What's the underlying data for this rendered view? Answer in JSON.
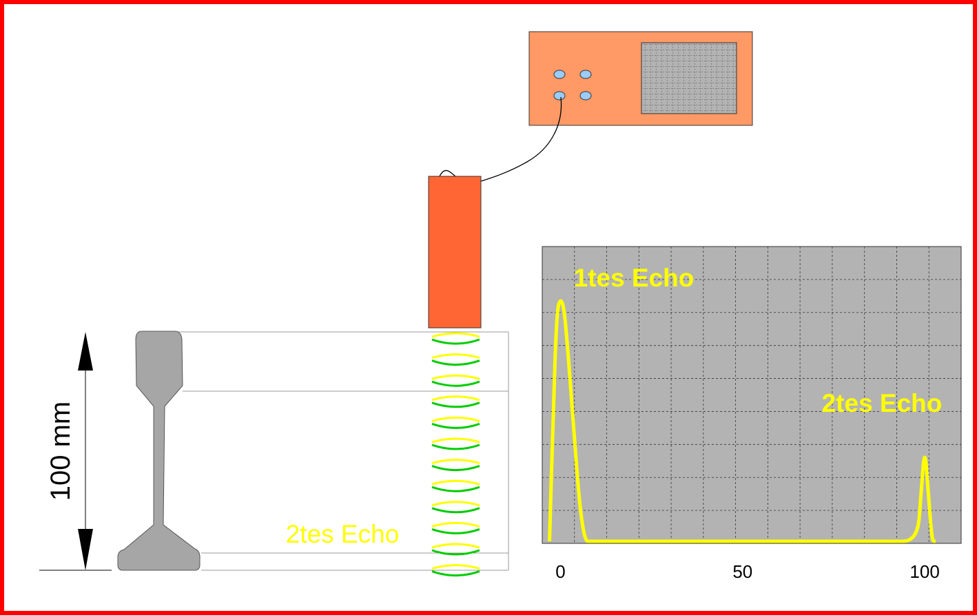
{
  "colors": {
    "frame": "#ff0000",
    "device_body": "#ff9966",
    "device_screen": "#b3b3b3",
    "knob": "#99ccff",
    "probe": "#ff6633",
    "rail": "#a6a6a6",
    "wave_green": "#00cc00",
    "wave_yellow": "#ffff00",
    "trace": "#ffff00",
    "screen_bg": "#b3b3b3"
  },
  "diagram": {
    "dimension_label": "100 mm",
    "wave_label": "2tes Echo",
    "wave_pair_count": 12
  },
  "chart_data": {
    "type": "line",
    "xtick_labels": [
      "0",
      "50",
      "100"
    ],
    "xlim": [
      -5,
      110
    ],
    "ylim": [
      0,
      8
    ],
    "annotations": [
      "1tes Echo",
      "2tes Echo"
    ],
    "x": [
      -3,
      -2,
      -1,
      0,
      1,
      2,
      3,
      4,
      5,
      6,
      7,
      8,
      30,
      60,
      90,
      98,
      99,
      100,
      101,
      102,
      103
    ],
    "y": [
      0,
      4,
      7.2,
      7.6,
      7.3,
      6.0,
      4.5,
      3.0,
      1.5,
      0.5,
      0,
      0,
      0,
      0,
      0,
      0,
      1.5,
      3.0,
      1.5,
      0,
      0
    ],
    "grid": true
  }
}
